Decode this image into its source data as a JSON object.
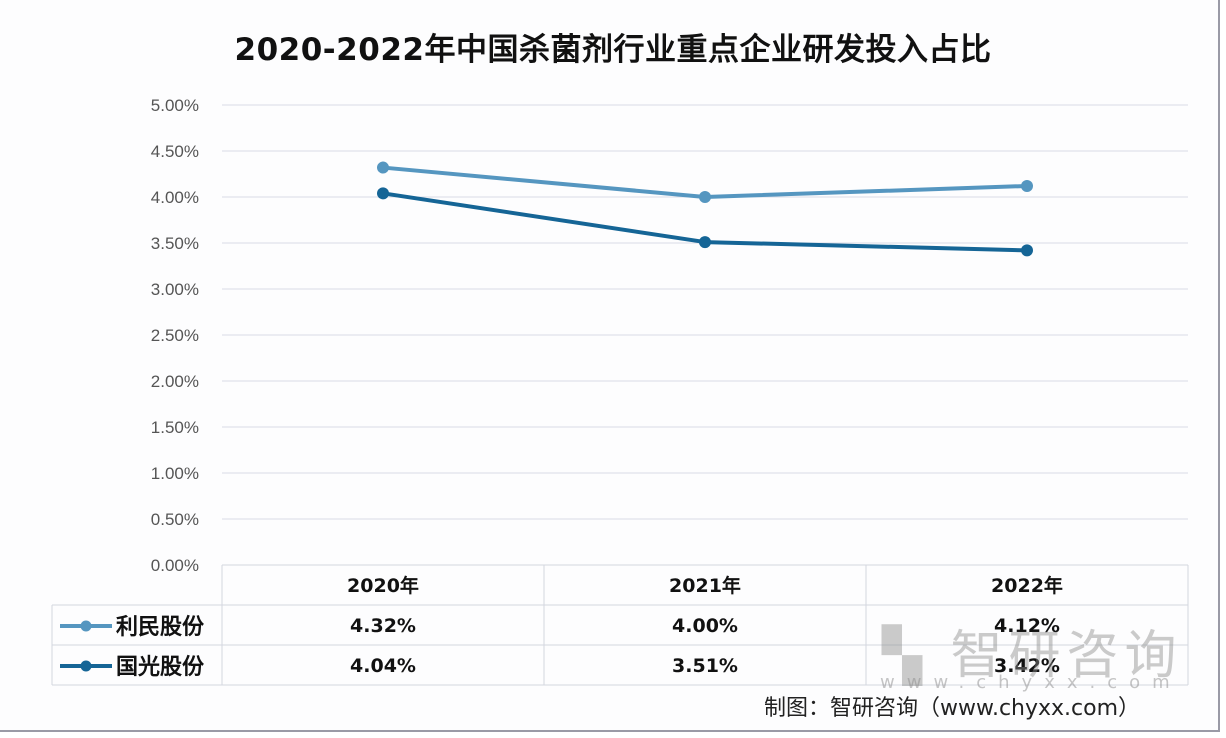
{
  "chart_data": {
    "type": "line",
    "title": "2020-2022年中国杀菌剂行业重点企业研发投入占比",
    "categories": [
      "2020年",
      "2021年",
      "2022年"
    ],
    "ylim": [
      0,
      5
    ],
    "yticks": [
      "0.00%",
      "0.50%",
      "1.00%",
      "1.50%",
      "2.00%",
      "2.50%",
      "3.00%",
      "3.50%",
      "4.00%",
      "4.50%",
      "5.00%"
    ],
    "grid": true,
    "legend": "data-table-below",
    "series": [
      {
        "name": "利民股份",
        "values": [
          4.32,
          4.0,
          4.12
        ],
        "labels": [
          "4.32%",
          "4.00%",
          "4.12%"
        ],
        "color": "#5596c0"
      },
      {
        "name": "国光股份",
        "values": [
          4.04,
          3.51,
          3.42
        ],
        "labels": [
          "4.04%",
          "3.51%",
          "3.42%"
        ],
        "color": "#156596"
      }
    ]
  },
  "credit": "制图：智研咨询（www.chyxx.com）",
  "watermark": {
    "text": "智研咨询",
    "url": "www.chyxx.com"
  }
}
